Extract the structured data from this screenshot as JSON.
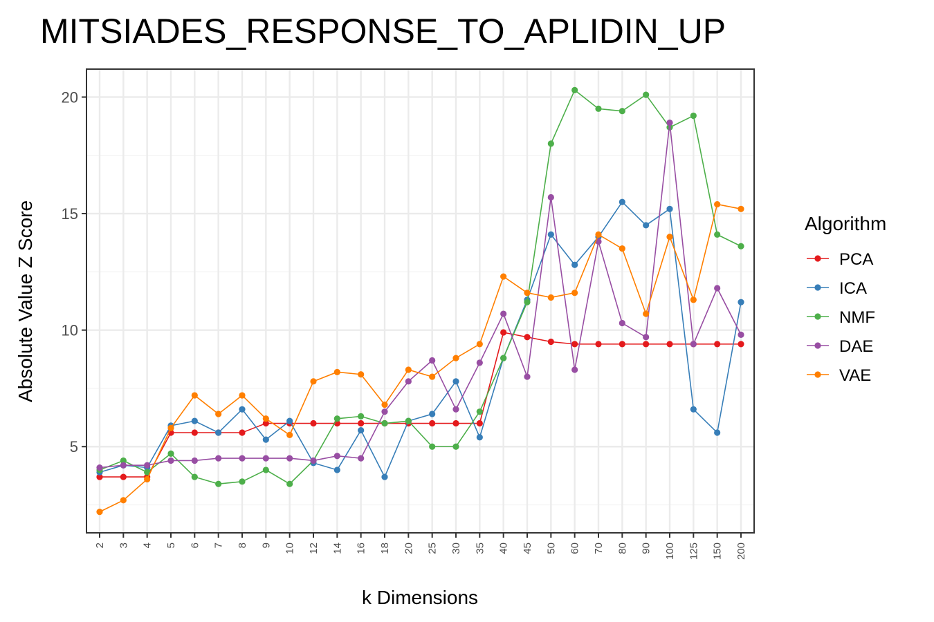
{
  "chart_data": {
    "type": "line",
    "title": "MITSIADES_RESPONSE_TO_APLIDIN_UP",
    "xlabel": "k Dimensions",
    "ylabel": "Absolute Value Z Score",
    "categories": [
      "2",
      "3",
      "4",
      "5",
      "6",
      "7",
      "8",
      "9",
      "10",
      "12",
      "14",
      "16",
      "18",
      "20",
      "25",
      "30",
      "35",
      "40",
      "45",
      "50",
      "60",
      "70",
      "80",
      "90",
      "100",
      "125",
      "150",
      "200"
    ],
    "ylim": [
      1.3,
      21.2
    ],
    "yticks": [
      "5",
      "10",
      "15",
      "20"
    ],
    "grid": true,
    "legend": {
      "title": "Algorithm",
      "placement": "right"
    },
    "series": [
      {
        "name": "PCA",
        "color": "#e41a1c",
        "values": [
          3.7,
          3.7,
          3.7,
          5.6,
          5.6,
          5.6,
          5.6,
          6.0,
          6.0,
          6.0,
          6.0,
          6.0,
          6.0,
          6.0,
          6.0,
          6.0,
          6.0,
          9.9,
          9.7,
          9.5,
          9.4,
          9.4,
          9.4,
          9.4,
          9.4,
          9.4,
          9.4,
          9.4
        ]
      },
      {
        "name": "ICA",
        "color": "#377eb8",
        "values": [
          3.9,
          4.2,
          4.1,
          5.9,
          6.1,
          5.6,
          6.6,
          5.3,
          6.1,
          4.3,
          4.0,
          5.7,
          3.7,
          6.1,
          6.4,
          7.8,
          5.4,
          8.8,
          11.3,
          14.1,
          12.8,
          14.0,
          15.5,
          14.5,
          15.2,
          6.6,
          5.6,
          11.2
        ]
      },
      {
        "name": "NMF",
        "color": "#4daf4a",
        "values": [
          4.0,
          4.4,
          3.9,
          4.7,
          3.7,
          3.4,
          3.5,
          4.0,
          3.4,
          4.4,
          6.2,
          6.3,
          6.0,
          6.1,
          5.0,
          5.0,
          6.5,
          8.8,
          11.2,
          18.0,
          20.3,
          19.5,
          19.4,
          20.1,
          18.7,
          19.2,
          14.1,
          13.6
        ]
      },
      {
        "name": "DAE",
        "color": "#984ea3",
        "values": [
          4.1,
          4.2,
          4.2,
          4.4,
          4.4,
          4.5,
          4.5,
          4.5,
          4.5,
          4.4,
          4.6,
          4.5,
          6.5,
          7.8,
          8.7,
          6.6,
          8.6,
          10.7,
          8.0,
          15.7,
          8.3,
          13.8,
          10.3,
          9.7,
          18.9,
          9.4,
          11.8,
          9.8
        ]
      },
      {
        "name": "VAE",
        "color": "#ff7f00",
        "values": [
          2.2,
          2.7,
          3.6,
          5.8,
          7.2,
          6.4,
          7.2,
          6.2,
          5.5,
          7.8,
          8.2,
          8.1,
          6.8,
          8.3,
          8.0,
          8.8,
          9.4,
          12.3,
          11.6,
          11.4,
          11.6,
          14.1,
          13.5,
          10.7,
          14.0,
          11.3,
          15.4,
          15.2
        ]
      }
    ]
  }
}
